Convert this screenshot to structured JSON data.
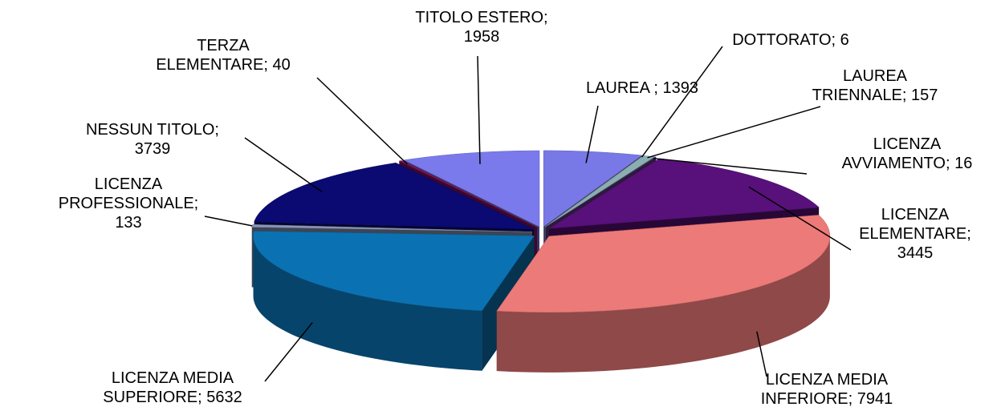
{
  "chart_data": {
    "type": "pie",
    "categories": [
      "LAUREA ;",
      "DOTTORATO;",
      "LAUREA TRIENNALE;",
      "LICENZA AVVIAMENTO;",
      "LICENZA ELEMENTARE;",
      "LICENZA MEDIA INFERIORE;",
      "LICENZA MEDIA SUPERIORE;",
      "LICENZA PROFESSIONALE;",
      "NESSUN TITOLO;",
      "TERZA ELEMENTARE;",
      "TITOLO ESTERO;"
    ],
    "values": [
      1393,
      6,
      157,
      16,
      3445,
      7941,
      5632,
      133,
      3739,
      40,
      1958
    ],
    "colors": [
      "#7878e6",
      "#ffffc8",
      "#88b0b0",
      "#603a80",
      "#58107a",
      "#ec7a78",
      "#0a72b2",
      "#8a96b8",
      "#0a0a72",
      "#86105e",
      "#7a7aec"
    ]
  }
}
